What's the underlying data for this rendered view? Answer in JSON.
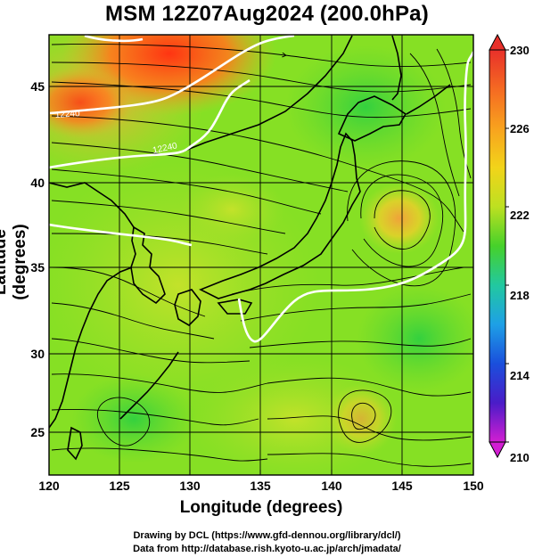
{
  "title": "MSM 12Z07Aug2024 (200.0hPa)",
  "x_axis": {
    "label": "Longitude (degrees)",
    "range": [
      120,
      150
    ],
    "ticks": [
      "120",
      "125",
      "130",
      "135",
      "140",
      "145",
      "150"
    ]
  },
  "y_axis": {
    "label": "Latitude  (degrees)",
    "range": [
      22.5,
      47.5
    ],
    "ticks": [
      "25",
      "30",
      "35",
      "40",
      "45"
    ]
  },
  "colorbar": {
    "range": [
      210,
      230
    ],
    "tick_labels": [
      "230",
      "226",
      "222",
      "218",
      "214",
      "210"
    ]
  },
  "contour_labels": [
    "12240",
    "12240"
  ],
  "credits": {
    "line1": "Drawing by DCL (https://www.gfd-dennou.org/library/dcl/)",
    "line2": "Data from http://database.rish.kyoto-u.ac.jp/arch/jmadata/"
  },
  "colors": {
    "field_base": "#7ee01c",
    "warm_high": "#ff3a14",
    "ridge": "#f0b030",
    "moderate": "#b8e028",
    "cool": "#3ad848"
  }
}
